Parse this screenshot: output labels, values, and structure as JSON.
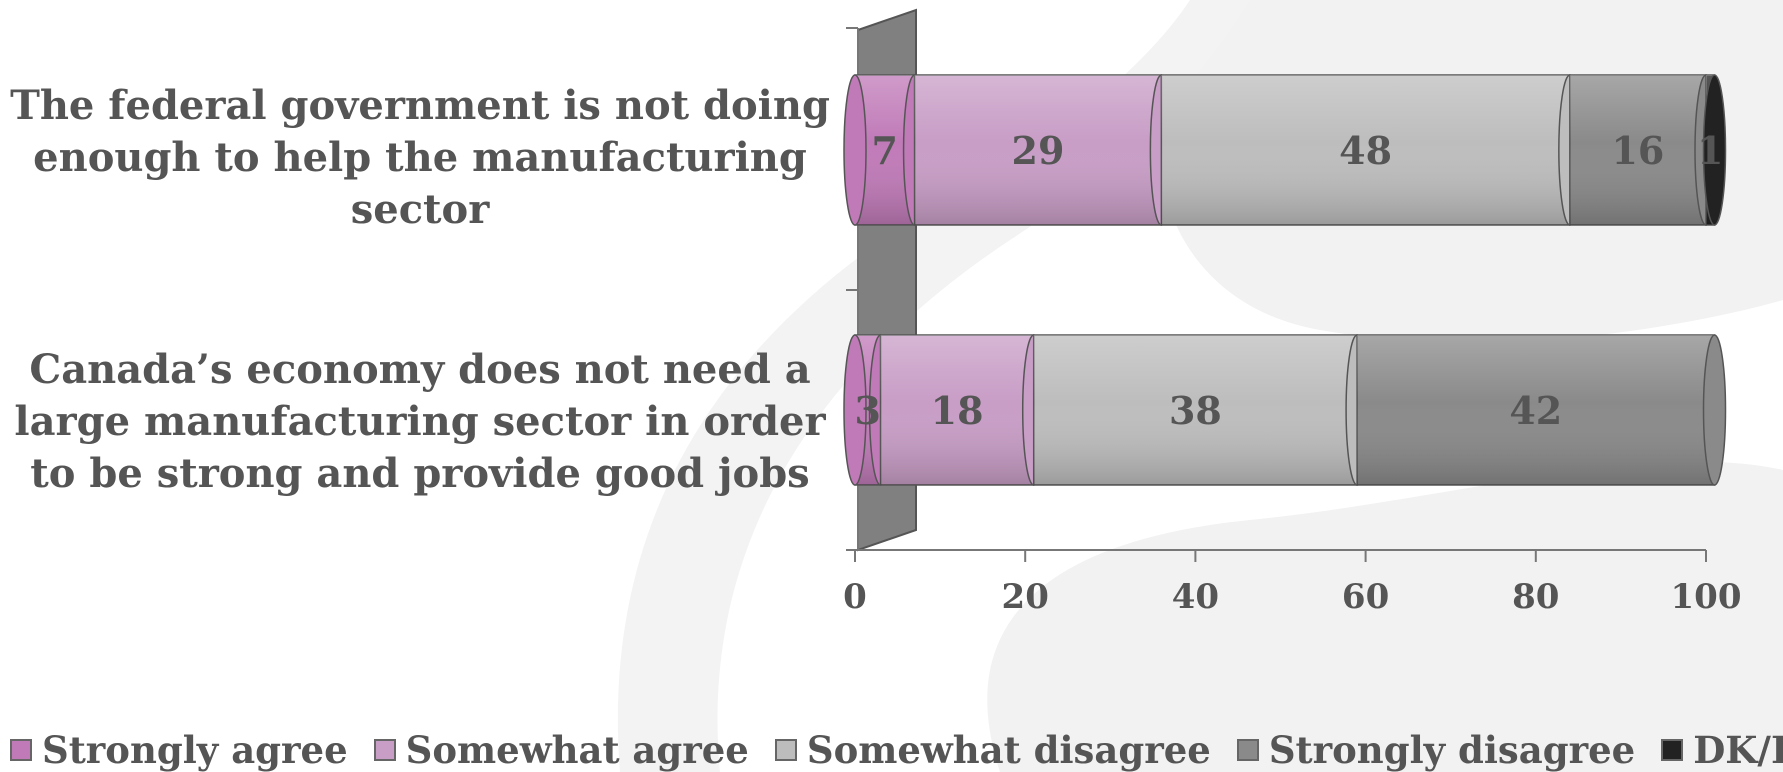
{
  "chart_data": {
    "type": "bar",
    "orientation": "horizontal",
    "stacked": true,
    "style": "3d-cylinder",
    "categories": [
      "The federal government is not doing enough to help the manufacturing sector",
      "Canada’s economy does not need a large manufacturing sector in order to be strong and provide good jobs"
    ],
    "series": [
      {
        "name": "Strongly agree",
        "values": [
          7,
          3
        ],
        "color": "#c07ab8"
      },
      {
        "name": "Somewhat agree",
        "values": [
          29,
          18
        ],
        "color": "#c89dc6"
      },
      {
        "name": "Somewhat disagree",
        "values": [
          48,
          38
        ],
        "color": "#bdbdbd"
      },
      {
        "name": "Strongly disagree",
        "values": [
          16,
          42
        ],
        "color": "#8a8a8a"
      },
      {
        "name": "DK/Ref",
        "values": [
          1,
          0
        ],
        "color": "#222222"
      }
    ],
    "data_labels": [
      [
        "7",
        "29",
        "48",
        "16",
        "1"
      ],
      [
        "3",
        "18",
        "38",
        "42",
        ""
      ]
    ],
    "xlim": [
      0,
      100
    ],
    "xticks": [
      "0",
      "20",
      "40",
      "60",
      "80",
      "100"
    ],
    "legend_position": "bottom",
    "grid": false
  }
}
